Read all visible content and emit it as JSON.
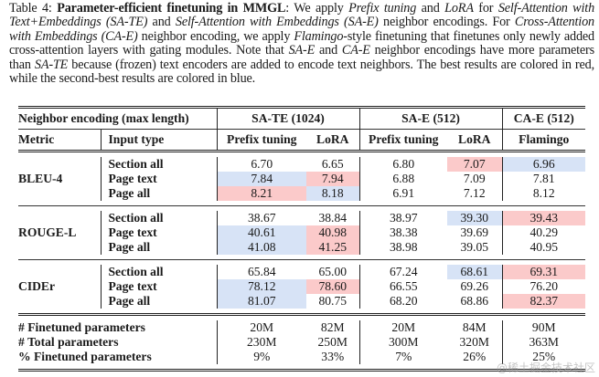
{
  "caption": {
    "label": "Table 4:",
    "title": "Parameter-efficient finetuning in MMGL",
    "segments": [
      {
        "t": ": We apply ",
        "s": "n"
      },
      {
        "t": "Prefix tuning",
        "s": "i"
      },
      {
        "t": " and ",
        "s": "n"
      },
      {
        "t": "LoRA",
        "s": "i"
      },
      {
        "t": " for ",
        "s": "n"
      },
      {
        "t": "Self-Attention with Text+Embeddings (SA-TE)",
        "s": "i"
      },
      {
        "t": " and ",
        "s": "n"
      },
      {
        "t": "Self-Attention with Embeddings (SA-E)",
        "s": "i"
      },
      {
        "t": " neighbor encodings. For ",
        "s": "n"
      },
      {
        "t": "Cross-Attention with Embeddings (CA-E)",
        "s": "i"
      },
      {
        "t": " neighbor encoding, we apply ",
        "s": "n"
      },
      {
        "t": "Flamingo",
        "s": "i"
      },
      {
        "t": "-style finetuning that finetunes only newly added cross-attention layers with gating modules. Note that ",
        "s": "n"
      },
      {
        "t": "SA-E",
        "s": "i"
      },
      {
        "t": " and ",
        "s": "n"
      },
      {
        "t": "CA-E",
        "s": "i"
      },
      {
        "t": " neighbor encodings have more parameters than ",
        "s": "n"
      },
      {
        "t": "SA-TE",
        "s": "i"
      },
      {
        "t": " because (frozen) text encoders are added to encode text neighbors. The best results are colored in red, while the second-best results are colored in blue.",
        "s": "n"
      }
    ]
  },
  "colors": {
    "best": "#fbcaca",
    "second_best": "#d7e3f6"
  },
  "table": {
    "header1": {
      "label": "Neighbor encoding (max length)",
      "groups": [
        "SA-TE (1024)",
        "SA-E (512)",
        "CA-E (512)"
      ]
    },
    "header2": {
      "metric": "Metric",
      "input_type": "Input type",
      "methods": [
        "Prefix tuning",
        "LoRA",
        "Prefix tuning",
        "LoRA",
        "Flamingo"
      ]
    },
    "blocks": [
      {
        "metric": "BLEU-4",
        "rows": [
          {
            "input": "Section all",
            "values": [
              "6.70",
              "6.65",
              "6.80",
              "7.07",
              "6.96"
            ],
            "hl": [
              "",
              "",
              "",
              "red",
              "blue"
            ]
          },
          {
            "input": "Page text",
            "values": [
              "7.84",
              "7.94",
              "6.88",
              "7.09",
              "7.81"
            ],
            "hl": [
              "blue",
              "red",
              "",
              "",
              ""
            ]
          },
          {
            "input": "Page all",
            "values": [
              "8.21",
              "8.18",
              "6.91",
              "7.12",
              "8.12"
            ],
            "hl": [
              "red",
              "blue",
              "",
              "",
              ""
            ]
          }
        ]
      },
      {
        "metric": "ROUGE-L",
        "rows": [
          {
            "input": "Section all",
            "values": [
              "38.67",
              "38.84",
              "38.97",
              "39.30",
              "39.43"
            ],
            "hl": [
              "",
              "",
              "",
              "blue",
              "red"
            ]
          },
          {
            "input": "Page text",
            "values": [
              "40.61",
              "40.98",
              "38.38",
              "39.69",
              "40.29"
            ],
            "hl": [
              "blue",
              "red",
              "",
              "",
              ""
            ]
          },
          {
            "input": "Page all",
            "values": [
              "41.08",
              "41.25",
              "38.98",
              "39.05",
              "40.95"
            ],
            "hl": [
              "blue",
              "red",
              "",
              "",
              ""
            ]
          }
        ]
      },
      {
        "metric": "CIDEr",
        "rows": [
          {
            "input": "Section all",
            "values": [
              "65.84",
              "65.00",
              "67.24",
              "68.61",
              "69.31"
            ],
            "hl": [
              "",
              "",
              "",
              "blue",
              "red"
            ]
          },
          {
            "input": "Page text",
            "values": [
              "78.12",
              "78.60",
              "66.55",
              "69.26",
              "76.20"
            ],
            "hl": [
              "blue",
              "red",
              "",
              "",
              ""
            ]
          },
          {
            "input": "Page all",
            "values": [
              "81.07",
              "80.75",
              "68.20",
              "68.86",
              "82.37"
            ],
            "hl": [
              "blue",
              "",
              "",
              "",
              "red"
            ]
          }
        ]
      }
    ],
    "params": [
      {
        "label": "# Finetuned parameters",
        "values": [
          "20M",
          "82M",
          "20M",
          "84M",
          "90M"
        ]
      },
      {
        "label": "# Total parameters",
        "values": [
          "230M",
          "250M",
          "300M",
          "320M",
          "363M"
        ]
      },
      {
        "label": "% Finetuned parameters",
        "values": [
          "9%",
          "33%",
          "7%",
          "26%",
          "25%"
        ]
      }
    ]
  },
  "watermark": "@稀土掘金技术社区"
}
